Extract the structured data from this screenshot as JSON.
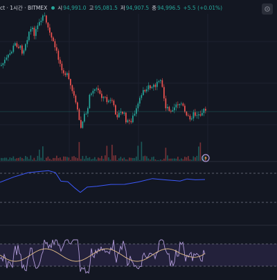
{
  "legend": {
    "symbol": "ct · 1시간 · BITMEX",
    "open_label": "시",
    "open_value": "94,991.0",
    "high_label": "고",
    "high_value": "95,081.5",
    "low_label": "저",
    "low_value": "94,907.5",
    "close_label": "종",
    "close_value": "94,996.5",
    "change": "+5.5 (+0.01%)"
  },
  "colors": {
    "background": "#131722",
    "up": "#26a69a",
    "down": "#ef5350",
    "line_indicator": "#3d5afe",
    "rsi_line": "#e8c28a",
    "rsi_band": "#7e57c2",
    "dashed": "#787b86",
    "pane_separator": "#2a2e39",
    "last_price_line": "#26a69a"
  },
  "icons": {
    "settings": "gear-icon",
    "alert": "alert-clock-icon"
  }
}
